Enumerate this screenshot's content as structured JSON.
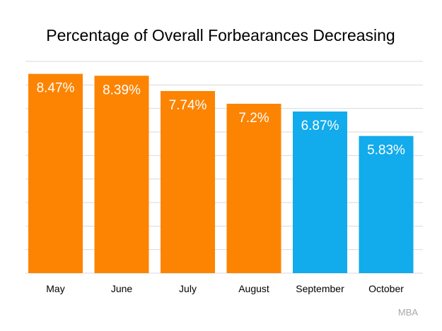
{
  "chart_data": {
    "type": "bar",
    "title": "Percentage of Overall Forbearances Decreasing",
    "categories": [
      "May",
      "June",
      "July",
      "August",
      "September",
      "October"
    ],
    "values": [
      8.47,
      8.39,
      7.74,
      7.2,
      6.87,
      5.83
    ],
    "data_labels": [
      "8.47%",
      "8.39%",
      "7.74%",
      "7.2%",
      "6.87%",
      "5.83%"
    ],
    "bar_colors": [
      "#fc8402",
      "#fc8402",
      "#fc8402",
      "#fc8402",
      "#12abec",
      "#12abec"
    ],
    "ylim": [
      0,
      9
    ],
    "grid": true,
    "xlabel": "",
    "ylabel": ""
  },
  "source": "MBA"
}
